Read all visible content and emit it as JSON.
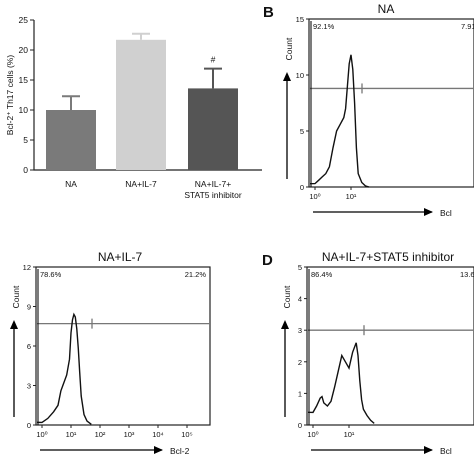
{
  "chart_data": [
    {
      "type": "bar",
      "panel": "A",
      "ylabel": "Bcl-2⁺ Th17 cells (%)",
      "ylim": [
        0,
        25
      ],
      "yticks": [
        0,
        5,
        10,
        15,
        20,
        25
      ],
      "categories": [
        "NA",
        "NA+IL-7",
        "NA+IL-7+\nSTAT5 inhibitor"
      ],
      "values": [
        10.0,
        21.7,
        13.6
      ],
      "errors": [
        2.3,
        1.0,
        3.3
      ],
      "colors": [
        "#7a7a7a",
        "#d0d0d0",
        "#555555"
      ],
      "annotations": [
        "",
        "",
        "#"
      ],
      "grid": false
    },
    {
      "type": "line",
      "panel": "B",
      "title": "NA",
      "ylabel": "Count",
      "xlabel": "Bcl",
      "ylim": [
        0,
        15
      ],
      "yticks": [
        0,
        5,
        10,
        15
      ],
      "xticks": [
        "10⁰",
        "10¹"
      ],
      "gate_left": "92.1%",
      "gate_right": "7.91%",
      "x_log": [
        0.0,
        0.1,
        0.2,
        0.3,
        0.4,
        0.5,
        0.6,
        0.7,
        0.8,
        0.85,
        0.9,
        0.95,
        1.0,
        1.05,
        1.1,
        1.15,
        1.2,
        1.3,
        1.4,
        1.5
      ],
      "y": [
        0.3,
        0.6,
        0.9,
        1.2,
        1.8,
        3.5,
        5.0,
        5.6,
        6.2,
        7.0,
        9.0,
        11.0,
        11.8,
        10.5,
        7.5,
        3.5,
        1.2,
        0.4,
        0.1,
        0.0
      ]
    },
    {
      "type": "line",
      "panel": "C",
      "title": "NA+IL-7",
      "ylabel": "Count",
      "xlabel": "Bcl-2",
      "ylim": [
        0,
        12
      ],
      "yticks": [
        0,
        3,
        6,
        9,
        12
      ],
      "xticks": [
        "10⁰",
        "10¹",
        "10²",
        "10³",
        "10⁴",
        "10⁵"
      ],
      "gate_left": "78.6%",
      "gate_right": "21.2%",
      "x_log": [
        0.0,
        0.2,
        0.4,
        0.55,
        0.65,
        0.75,
        0.85,
        0.95,
        1.0,
        1.05,
        1.1,
        1.15,
        1.2,
        1.25,
        1.3,
        1.35,
        1.45,
        1.55,
        1.7
      ],
      "y": [
        0.2,
        0.5,
        1.0,
        1.5,
        2.6,
        3.2,
        3.8,
        5.0,
        7.0,
        8.0,
        8.4,
        8.2,
        7.3,
        5.8,
        4.0,
        2.2,
        0.8,
        0.3,
        0.05
      ]
    },
    {
      "type": "line",
      "panel": "D",
      "title": "NA+IL-7+STAT5 inhibitor",
      "ylabel": "Count",
      "xlabel": "Bcl",
      "ylim": [
        0,
        5
      ],
      "yticks": [
        0,
        1,
        2,
        3,
        4,
        5
      ],
      "xticks": [
        "10⁰",
        "10¹"
      ],
      "gate_left": "86.4%",
      "gate_right": "13.6%",
      "x_log": [
        0.0,
        0.1,
        0.2,
        0.25,
        0.3,
        0.4,
        0.5,
        0.6,
        0.7,
        0.8,
        0.9,
        1.0,
        1.1,
        1.2,
        1.25,
        1.3,
        1.35,
        1.4,
        1.5,
        1.6,
        1.7
      ],
      "y": [
        0.4,
        0.6,
        0.85,
        0.9,
        0.7,
        0.6,
        0.75,
        1.2,
        1.7,
        2.2,
        2.0,
        1.8,
        2.3,
        2.6,
        2.2,
        1.4,
        0.8,
        0.5,
        0.3,
        0.15,
        0.05
      ]
    }
  ],
  "labels": {
    "B": "B",
    "C": "",
    "D": "D"
  }
}
